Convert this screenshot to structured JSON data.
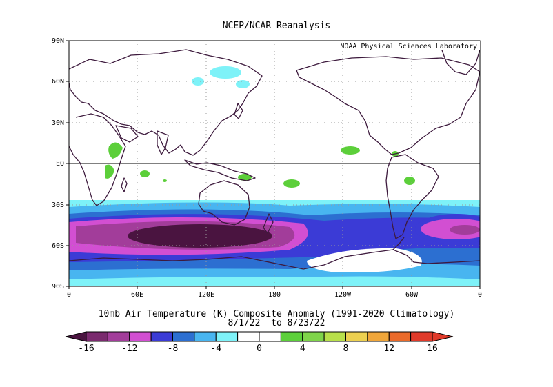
{
  "header": {
    "title": "NCEP/NCAR Reanalysis",
    "credit": "NOAA Physical Sciences Laboratory"
  },
  "caption": {
    "line1": "10mb Air Temperature (K) Composite Anomaly (1991-2020 Climatology)",
    "line2": "8/1/22  to 8/23/22"
  },
  "axes": {
    "y_ticks": [
      "90N",
      "60N",
      "30N",
      "EQ",
      "30S",
      "60S",
      "90S"
    ],
    "x_ticks": [
      "0",
      "60E",
      "120E",
      "180",
      "120W",
      "60W",
      "0"
    ]
  },
  "colorbar": {
    "labels": [
      "-16",
      "-12",
      "-8",
      "-4",
      "0",
      "4",
      "8",
      "12",
      "16"
    ],
    "colors": [
      "#4a1440",
      "#7a2a6e",
      "#a23d9a",
      "#d24fd2",
      "#3b3bd6",
      "#2c6fd1",
      "#48b5f0",
      "#7ef2f8",
      "#ffffff",
      "#ffffff",
      "#5ccf3a",
      "#7fd44a",
      "#b8e04a",
      "#ecd050",
      "#f0a63a",
      "#ea6a2a",
      "#e03a2a",
      "#e03a2a"
    ]
  },
  "map_palette": {
    "land_outline": "#3d1a3d",
    "grid": "#9a9a9a",
    "cyan_light": "#7ef2f8",
    "cyan": "#48b5f0",
    "blue": "#2c6fd1",
    "blue_dark": "#3b3bd6",
    "magenta": "#d24fd2",
    "purple": "#a23d9a",
    "purple_dark": "#4a1440",
    "green": "#5ccf3a"
  }
}
